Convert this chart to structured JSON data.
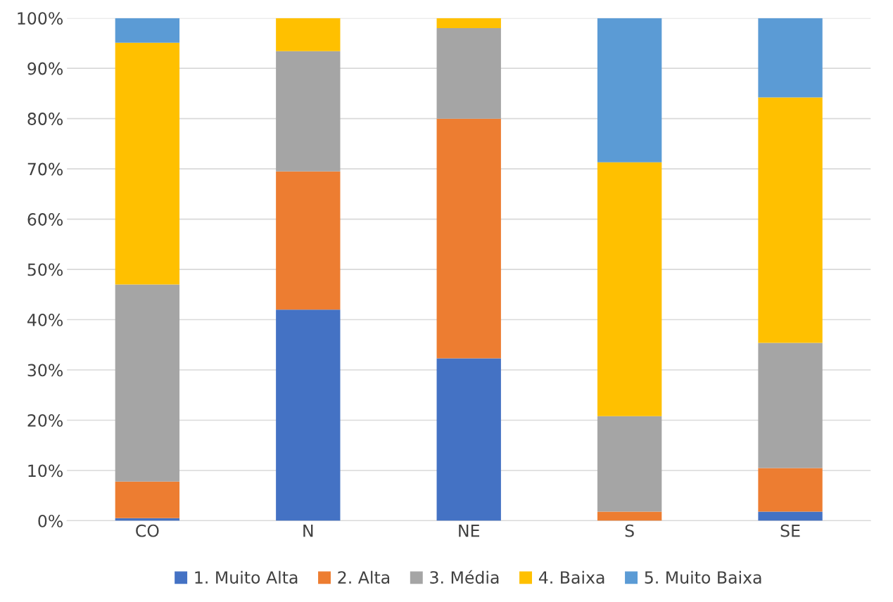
{
  "chart_data": {
    "type": "bar",
    "stacked": true,
    "categories": [
      "CO",
      "N",
      "NE",
      "S",
      "SE"
    ],
    "series": [
      {
        "name": "1. Muito Alta",
        "color": "#4472c4",
        "values": [
          0.5,
          42.0,
          32.3,
          null,
          1.8
        ]
      },
      {
        "name": "2. Alta",
        "color": "#ed7d31",
        "values": [
          7.3,
          27.5,
          47.7,
          1.8,
          8.7
        ]
      },
      {
        "name": "3. Média",
        "color": "#a5a5a5",
        "values": [
          39.2,
          23.9,
          18.0,
          19.0,
          24.9
        ]
      },
      {
        "name": "4. Baixa",
        "color": "#ffc000",
        "values": [
          48.1,
          6.6,
          2.0,
          50.5,
          48.8
        ]
      },
      {
        "name": "5. Muito Baixa",
        "color": "#5b9bd5",
        "values": [
          4.9,
          null,
          null,
          28.7,
          15.8
        ]
      }
    ],
    "ylim": [
      0,
      100
    ],
    "yticks": [
      {
        "value": 0,
        "label": "0%"
      },
      {
        "value": 10,
        "label": "10%"
      },
      {
        "value": 20,
        "label": "20%"
      },
      {
        "value": 30,
        "label": "30%"
      },
      {
        "value": 40,
        "label": "40%"
      },
      {
        "value": 50,
        "label": "50%"
      },
      {
        "value": 60,
        "label": "60%"
      },
      {
        "value": 70,
        "label": "70%"
      },
      {
        "value": 80,
        "label": "80%"
      },
      {
        "value": 90,
        "label": "90%"
      },
      {
        "value": 100,
        "label": "100%"
      }
    ],
    "grid": "y",
    "legend": "bottom"
  }
}
